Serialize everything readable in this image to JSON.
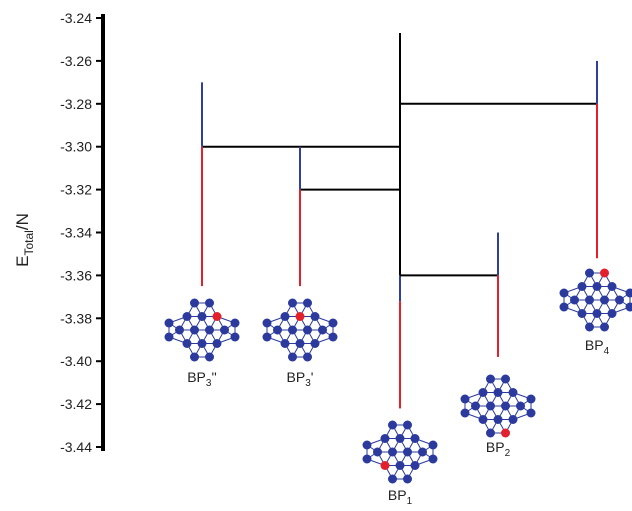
{
  "chart_data": {
    "type": "energy-diagram",
    "ylabel": {
      "base": "E",
      "sub": "Total",
      "suffix": "/N"
    },
    "ylim": [
      -3.44,
      -3.24
    ],
    "yticks": [
      -3.24,
      -3.26,
      -3.28,
      {
        "value": -3.3,
        "label": "-3.30"
      },
      -3.32,
      -3.34,
      -3.36,
      -3.38,
      {
        "value": -3.4,
        "label": "-3.40"
      },
      -3.42,
      -3.44
    ],
    "isomers": [
      {
        "label": {
          "base": "BP",
          "sub": "3",
          "suffix": "''"
        },
        "top": -3.27,
        "split": -3.3,
        "bottom": -3.365,
        "branch": -3.3
      },
      {
        "label": {
          "base": "BP",
          "sub": "3",
          "suffix": "'"
        },
        "top": -3.3,
        "split": -3.32,
        "bottom": -3.365,
        "branch": -3.32
      },
      {
        "label": {
          "base": "BP",
          "sub": "1"
        },
        "trunk_top": -3.247,
        "top": -3.36,
        "split": -3.372,
        "bottom": -3.422
      },
      {
        "label": {
          "base": "BP",
          "sub": "2"
        },
        "top": -3.34,
        "split": -3.36,
        "bottom": -3.398,
        "branch": -3.36
      },
      {
        "label": {
          "base": "BP",
          "sub": "4"
        },
        "top": -3.26,
        "split": -3.28,
        "bottom": -3.352,
        "branch": -3.28
      }
    ],
    "colors": {
      "upper": "#2f3fa0",
      "lower": "#e3202b",
      "tree": "#000000",
      "atom": "#2b3a9c",
      "doped": "#e3202b"
    }
  }
}
